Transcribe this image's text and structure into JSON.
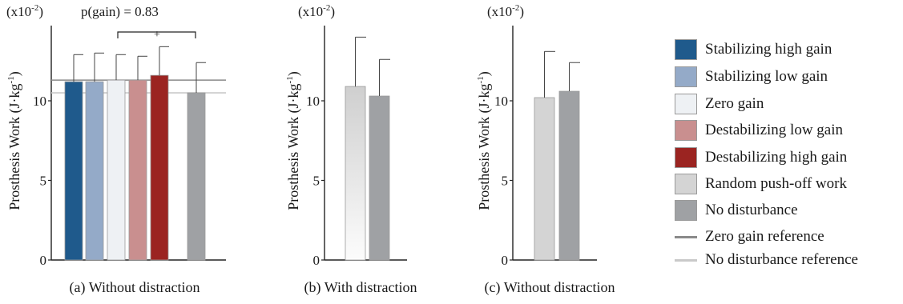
{
  "colors": {
    "stabilizing_high": "#1f5a8c",
    "stabilizing_low": "#94aac8",
    "zero": "#eef1f4",
    "destabilizing_low": "#c98f8f",
    "destabilizing_high": "#9b2421",
    "random": "#d4d4d4",
    "no_disturbance": "#9fa1a4",
    "zero_ref_line": "#8a8a8a",
    "no_dist_ref_line": "#c9c9c9"
  },
  "legend": [
    {
      "label": "Stabilizing high gain",
      "kind": "box",
      "color": "#1f5a8c"
    },
    {
      "label": "Stabilizing low gain",
      "kind": "box",
      "color": "#94aac8"
    },
    {
      "label": "Zero gain",
      "kind": "box",
      "color": "#eef1f4"
    },
    {
      "label": "Destabilizing low gain",
      "kind": "box",
      "color": "#c98f8f"
    },
    {
      "label": "Destabilizing high gain",
      "kind": "box",
      "color": "#9b2421"
    },
    {
      "label": "Random push-off work",
      "kind": "box",
      "color": "#d4d4d4"
    },
    {
      "label": "No disturbance",
      "kind": "box",
      "color": "#9fa1a4"
    },
    {
      "label": "Zero gain reference",
      "kind": "line",
      "color": "#8a8a8a"
    },
    {
      "label": "No disturbance  reference",
      "kind": "line",
      "color": "#c9c9c9"
    }
  ],
  "chart_data": [
    {
      "type": "bar",
      "caption": "(a) Without distraction",
      "scale_note": "(x10",
      "scale_exp": "-2",
      "scale_close": ")",
      "annotation": "p(gain) = 0.83",
      "significance_marker": "+",
      "ylabel": "Prosthesis Work",
      "yunit": "(J·kg",
      "yunit_exp": "-1",
      "yunit_close": ")",
      "ylim": [
        0,
        15.5
      ],
      "yticks": [
        0,
        5,
        10
      ],
      "ytick_labels": [
        "0",
        "5",
        "10"
      ],
      "reference_lines": [
        {
          "name": "Zero gain reference",
          "value": 11.3
        },
        {
          "name": "No disturbance reference",
          "value": 10.5
        }
      ],
      "bars": [
        {
          "name": "Stabilizing high gain",
          "value": 11.2,
          "error": 1.7
        },
        {
          "name": "Stabilizing low gain",
          "value": 11.2,
          "error": 1.8
        },
        {
          "name": "Zero gain",
          "value": 11.3,
          "error": 1.6
        },
        {
          "name": "Destabilizing low gain",
          "value": 11.3,
          "error": 1.5
        },
        {
          "name": "Destabilizing high gain",
          "value": 11.6,
          "error": 1.8
        },
        {
          "name": "No disturbance",
          "value": 10.5,
          "error": 1.9
        }
      ]
    },
    {
      "type": "bar",
      "caption": "(b) With distraction",
      "scale_note": "(x10",
      "scale_exp": "-2",
      "scale_close": ")",
      "ylabel": "Prosthesis Work",
      "yunit": "(J·kg",
      "yunit_exp": "-1",
      "yunit_close": ")",
      "ylim": [
        0,
        15.5
      ],
      "yticks": [
        0,
        5,
        10
      ],
      "ytick_labels": [
        "0",
        "5",
        "10"
      ],
      "bars": [
        {
          "name": "Random push-off work",
          "value": 10.9,
          "error": 3.1
        },
        {
          "name": "No disturbance",
          "value": 10.3,
          "error": 2.3
        }
      ]
    },
    {
      "type": "bar",
      "caption": "(c) Without distraction",
      "scale_note": "(x10",
      "scale_exp": "-2",
      "scale_close": ")",
      "ylabel": "Prosthesis Work",
      "yunit": "(J·kg",
      "yunit_exp": "-1",
      "yunit_close": ")",
      "ylim": [
        0,
        15.5
      ],
      "yticks": [
        0,
        5,
        10
      ],
      "ytick_labels": [
        "0",
        "5",
        "10"
      ],
      "bars": [
        {
          "name": "Random push-off work",
          "value": 10.2,
          "error": 2.9
        },
        {
          "name": "No disturbance",
          "value": 10.6,
          "error": 1.8
        }
      ]
    }
  ]
}
